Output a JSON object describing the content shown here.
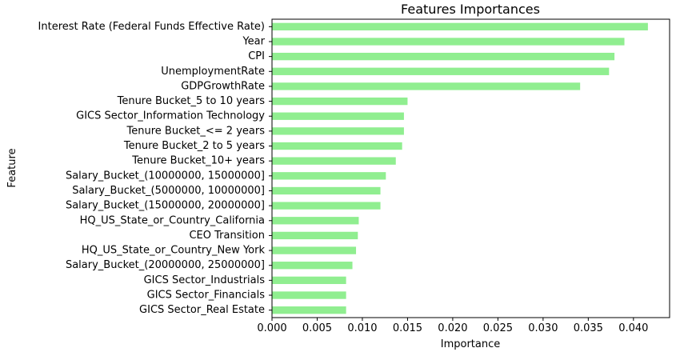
{
  "chart_data": {
    "type": "bar",
    "orientation": "horizontal",
    "title": "Features Importances",
    "xlabel": "Importance",
    "ylabel": "Feature",
    "bar_color": "#90EE90",
    "grid": false,
    "legend": "none",
    "xlim": [
      0,
      0.044
    ],
    "xticks": [
      0.0,
      0.005,
      0.01,
      0.015,
      0.02,
      0.025,
      0.03,
      0.035,
      0.04
    ],
    "xtick_labels": [
      "0.000",
      "0.005",
      "0.010",
      "0.015",
      "0.020",
      "0.025",
      "0.030",
      "0.035",
      "0.040"
    ],
    "categories": [
      "Interest Rate (Federal Funds Effective Rate)",
      "Year",
      "CPI",
      "UnemploymentRate",
      "GDPGrowthRate",
      "Tenure Bucket_5 to 10 years",
      "GICS Sector_Information Technology",
      "Tenure Bucket_<= 2 years",
      "Tenure Bucket_2 to 5 years",
      "Tenure Bucket_10+ years",
      "Salary_Bucket_(10000000, 15000000]",
      "Salary_Bucket_(5000000, 10000000]",
      "Salary_Bucket_(15000000, 20000000]",
      "HQ_US_State_or_Country_California",
      "CEO Transition",
      "HQ_US_State_or_Country_New York",
      "Salary_Bucket_(20000000, 25000000]",
      "GICS Sector_Industrials",
      "GICS Sector_Financials",
      "GICS Sector_Real Estate"
    ],
    "values": [
      0.0416,
      0.039,
      0.0379,
      0.0373,
      0.0341,
      0.015,
      0.0146,
      0.0146,
      0.0144,
      0.0137,
      0.0126,
      0.012,
      0.012,
      0.0096,
      0.0095,
      0.0093,
      0.0089,
      0.0082,
      0.0082,
      0.0082
    ]
  }
}
